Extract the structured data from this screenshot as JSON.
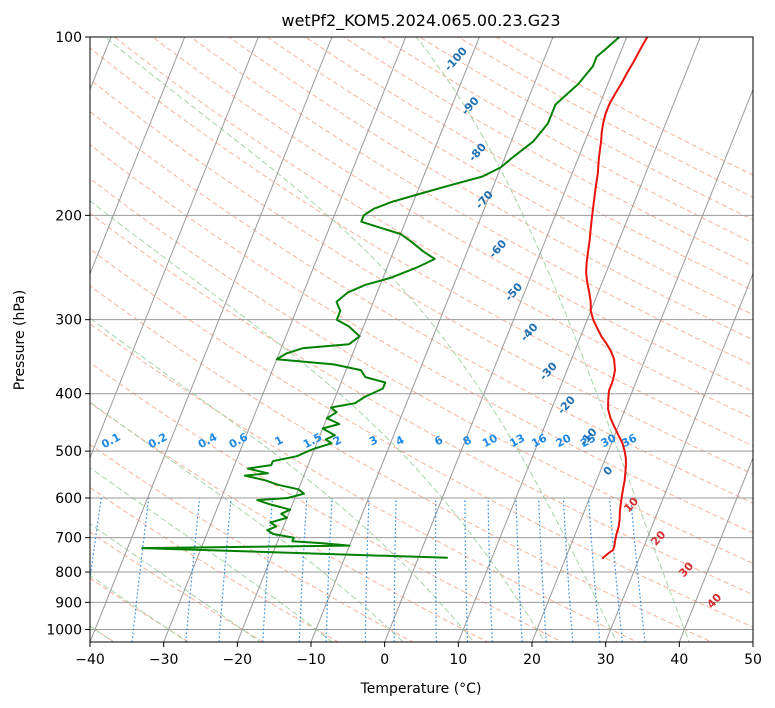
{
  "chart_data": {
    "type": "line",
    "title": "wetPf2_KOM5.2024.065.00.23.G23",
    "xlabel": "Temperature (°C)",
    "ylabel": "Pressure (hPa)",
    "xlim": [
      -40,
      50
    ],
    "ylim": [
      1050,
      100
    ],
    "y_scale": "log",
    "x_ticks": [
      "−40",
      "−30",
      "−20",
      "−10",
      "0",
      "10",
      "20",
      "30",
      "40",
      "50"
    ],
    "y_ticks": [
      "100",
      "200",
      "300",
      "400",
      "500",
      "600",
      "700",
      "800",
      "900",
      "1000"
    ],
    "grid": true,
    "legend": "none",
    "colors": {
      "temperature": "#e8120c",
      "dewpoint": "#008000",
      "isotherm": "#999999",
      "dry_adiabat": "#f4a48a",
      "moist_adiabat": "#9fcf9f",
      "mixing_ratio": "#1e88e5",
      "dry_label": "#1f6fb0",
      "moist_label": "#d32f2f"
    },
    "series": [
      {
        "name": "",
        "color": "#e8120c",
        "points": [
          [
            25,
            760
          ],
          [
            25.5,
            745
          ],
          [
            26,
            735
          ],
          [
            26,
            725
          ],
          [
            25.8,
            710
          ],
          [
            25.6,
            690
          ],
          [
            25.5,
            670
          ],
          [
            25.2,
            650
          ],
          [
            24.8,
            630
          ],
          [
            24.5,
            610
          ],
          [
            24.2,
            590
          ],
          [
            24,
            575
          ],
          [
            23.8,
            560
          ],
          [
            23.5,
            545
          ],
          [
            23.2,
            530
          ],
          [
            22.8,
            515
          ],
          [
            22.2,
            500
          ],
          [
            21.5,
            485
          ],
          [
            20.5,
            470
          ],
          [
            19.5,
            455
          ],
          [
            18.5,
            440
          ],
          [
            17.7,
            425
          ],
          [
            17.2,
            410
          ],
          [
            16.8,
            395
          ],
          [
            16.8,
            385
          ],
          [
            16.7,
            375
          ],
          [
            16.5,
            365
          ],
          [
            15.8,
            350
          ],
          [
            15,
            340
          ],
          [
            14,
            330
          ],
          [
            12.8,
            320
          ],
          [
            11.8,
            310
          ],
          [
            10.8,
            300
          ],
          [
            10,
            290
          ],
          [
            9.5,
            280
          ],
          [
            8.8,
            270
          ],
          [
            8,
            260
          ],
          [
            7.3,
            250
          ],
          [
            6.8,
            240
          ],
          [
            6.4,
            230
          ],
          [
            6,
            220
          ],
          [
            5.5,
            210
          ],
          [
            5,
            200
          ],
          [
            4.5,
            190
          ],
          [
            4,
            180
          ],
          [
            3.5,
            170
          ],
          [
            2.8,
            160
          ],
          [
            2.2,
            150
          ],
          [
            1.8,
            145
          ],
          [
            1.5,
            140
          ],
          [
            1.3,
            135
          ],
          [
            1.3,
            130
          ],
          [
            1.5,
            125
          ],
          [
            1.8,
            120
          ],
          [
            2,
            115
          ],
          [
            2.3,
            110
          ],
          [
            2.5,
            105
          ],
          [
            2.8,
            100
          ]
        ]
      },
      {
        "name": "",
        "color": "#008000",
        "points": [
          [
            4,
            757
          ],
          [
            -38,
            729
          ],
          [
            -10,
            722
          ],
          [
            -14,
            715
          ],
          [
            -18,
            710
          ],
          [
            -18,
            700
          ],
          [
            -21,
            690
          ],
          [
            -22,
            680
          ],
          [
            -21,
            670
          ],
          [
            -22,
            660
          ],
          [
            -20,
            648
          ],
          [
            -21,
            638
          ],
          [
            -20,
            628
          ],
          [
            -23,
            615
          ],
          [
            -25,
            605
          ],
          [
            -21,
            600
          ],
          [
            -19,
            590
          ],
          [
            -20,
            580
          ],
          [
            -23,
            570
          ],
          [
            -25,
            560
          ],
          [
            -28,
            550
          ],
          [
            -25,
            545
          ],
          [
            -28,
            535
          ],
          [
            -25,
            528
          ],
          [
            -25,
            520
          ],
          [
            -22,
            510
          ],
          [
            -21,
            502
          ],
          [
            -20,
            495
          ],
          [
            -18,
            485
          ],
          [
            -19,
            478
          ],
          [
            -18,
            470
          ],
          [
            -20,
            458
          ],
          [
            -18,
            450
          ],
          [
            -20,
            440
          ],
          [
            -19,
            430
          ],
          [
            -20,
            422
          ],
          [
            -17,
            415
          ],
          [
            -16,
            405
          ],
          [
            -14,
            392
          ],
          [
            -14,
            383
          ],
          [
            -17,
            375
          ],
          [
            -18,
            365
          ],
          [
            -22,
            357
          ],
          [
            -30,
            350
          ],
          [
            -29,
            342
          ],
          [
            -27,
            335
          ],
          [
            -21,
            330
          ],
          [
            -20,
            320
          ],
          [
            -22,
            308
          ],
          [
            -24,
            300
          ],
          [
            -24,
            290
          ],
          [
            -25,
            280
          ],
          [
            -24,
            270
          ],
          [
            -22,
            262
          ],
          [
            -19,
            255
          ],
          [
            -16,
            245
          ],
          [
            -14,
            237
          ],
          [
            -16,
            230
          ],
          [
            -18,
            222
          ],
          [
            -20,
            215
          ],
          [
            -23,
            210
          ],
          [
            -26,
            205
          ],
          [
            -26,
            200
          ],
          [
            -25,
            195
          ],
          [
            -23,
            190
          ],
          [
            -19,
            183
          ],
          [
            -16,
            178
          ],
          [
            -12,
            172
          ],
          [
            -10,
            166
          ],
          [
            -9,
            160
          ],
          [
            -7,
            150
          ],
          [
            -6,
            140
          ],
          [
            -6,
            130
          ],
          [
            -4,
            120
          ],
          [
            -3,
            112
          ],
          [
            -3,
            108
          ],
          [
            -2,
            104
          ],
          [
            -1,
            100
          ]
        ]
      }
    ],
    "isotherms": {
      "color": "#999999",
      "skew": 0.4,
      "t0_min": -80,
      "t0_max": 50,
      "step": 10
    },
    "dry_adiabat_labels": {
      "color": "#1f6fb0",
      "items": [
        {
          "text": "-100",
          "t": -21.5,
          "p": 110
        },
        {
          "text": "-90",
          "t": -17,
          "p": 132
        },
        {
          "text": "-80",
          "t": -13.5,
          "p": 158
        },
        {
          "text": "-70",
          "t": -10,
          "p": 190
        },
        {
          "text": "-60",
          "t": -5.5,
          "p": 230
        },
        {
          "text": "-50",
          "t": -1,
          "p": 272
        },
        {
          "text": "-40",
          "t": 3.3,
          "p": 318
        },
        {
          "text": "-30",
          "t": 8,
          "p": 370
        },
        {
          "text": "-20",
          "t": 12.3,
          "p": 422
        },
        {
          "text": "-10",
          "t": 17,
          "p": 478
        },
        {
          "text": "0",
          "t": 21.5,
          "p": 545
        },
        {
          "text": "10",
          "t": 26.5,
          "p": 622
        },
        {
          "text": "20",
          "t": 32,
          "p": 708
        },
        {
          "text": "30",
          "t": 37.5,
          "p": 800
        },
        {
          "text": "40",
          "t": 43,
          "p": 903
        }
      ]
    },
    "dry_adiabats": {
      "color": "#f4a48a",
      "theta_celsius": [
        -100,
        -90,
        -80,
        -70,
        -60,
        -50,
        -40,
        -30,
        -20,
        -10,
        0,
        10,
        20,
        30,
        40,
        50,
        60,
        70,
        80,
        90,
        100,
        110,
        120,
        130,
        140,
        150,
        160,
        170,
        180,
        190,
        200,
        210,
        220
      ]
    },
    "moist_adiabats": {
      "color": "#9fcf9f",
      "theta_w_celsius": [
        -40,
        -30,
        -20,
        -10,
        0,
        10,
        20,
        30,
        40
      ]
    },
    "mixing_ratio_lines": {
      "color": "#1e88e5",
      "label_pressure": 490,
      "values": [
        0.1,
        0.2,
        0.4,
        0.6,
        1,
        1.5,
        2,
        3,
        4,
        6,
        8,
        10,
        13,
        16,
        20,
        25,
        30,
        36
      ],
      "labels": [
        "0.1",
        "0.2",
        "0.4",
        "0.6",
        "1",
        "1.5",
        "2",
        "3",
        "4",
        "6",
        "8",
        "10",
        "13",
        "16",
        "20",
        "25",
        "30",
        "36"
      ]
    }
  }
}
